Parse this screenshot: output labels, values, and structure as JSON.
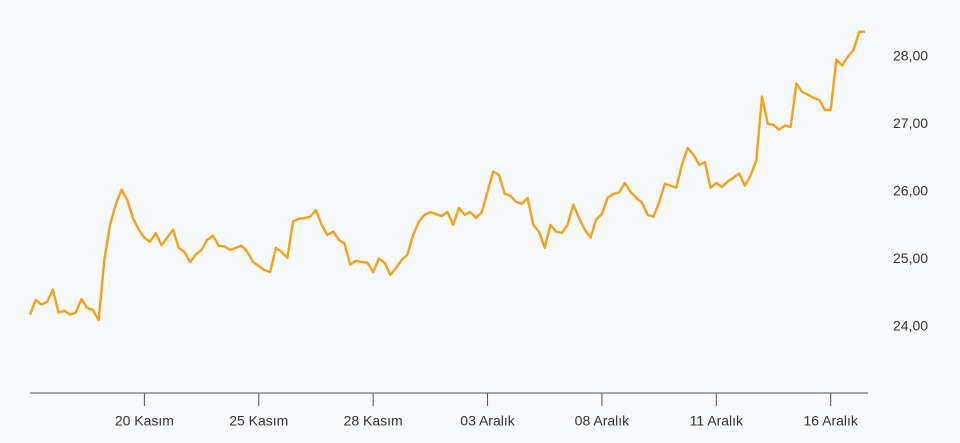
{
  "chart_data": {
    "type": "line",
    "color": "#f4a21d",
    "grid": false,
    "categories": [
      null,
      null,
      null,
      null,
      null,
      null,
      null,
      null,
      null,
      null,
      null,
      null,
      null,
      null,
      null,
      null,
      null,
      null,
      null,
      null,
      "20 Kasım",
      null,
      null,
      null,
      null,
      null,
      null,
      null,
      null,
      null,
      null,
      null,
      null,
      null,
      null,
      null,
      null,
      null,
      null,
      null,
      "25 Kasım",
      null,
      null,
      null,
      null,
      null,
      null,
      null,
      null,
      null,
      null,
      null,
      null,
      null,
      null,
      null,
      null,
      null,
      null,
      null,
      "28 Kasım",
      null,
      null,
      null,
      null,
      null,
      null,
      null,
      null,
      null,
      null,
      null,
      null,
      null,
      null,
      null,
      null,
      null,
      null,
      null,
      "03 Aralık",
      null,
      null,
      null,
      null,
      null,
      null,
      null,
      null,
      null,
      null,
      null,
      null,
      null,
      null,
      null,
      null,
      null,
      null,
      null,
      "08 Aralık",
      null,
      null,
      null,
      null,
      null,
      null,
      null,
      null,
      null,
      null,
      null,
      null,
      null,
      null,
      null,
      null,
      null,
      null,
      null,
      "11 Aralık",
      null,
      null,
      null,
      null,
      null,
      null,
      null,
      null,
      null,
      null,
      null,
      null,
      null,
      null,
      null,
      null,
      null,
      null,
      null,
      "16 Aralık",
      null,
      null,
      null,
      null,
      null,
      null
    ],
    "values": [
      24.18,
      24.4,
      24.33,
      24.37,
      24.55,
      24.21,
      24.24,
      24.18,
      24.21,
      24.41,
      24.28,
      24.25,
      24.1,
      24.99,
      25.51,
      25.81,
      26.03,
      25.88,
      25.61,
      25.44,
      25.32,
      25.26,
      25.39,
      25.21,
      25.32,
      25.44,
      25.17,
      25.11,
      24.96,
      25.07,
      25.14,
      25.29,
      25.35,
      25.2,
      25.19,
      25.14,
      25.17,
      25.2,
      25.11,
      24.96,
      24.9,
      24.84,
      24.81,
      25.17,
      25.11,
      25.02,
      25.56,
      25.6,
      25.61,
      25.63,
      25.73,
      25.51,
      25.36,
      25.41,
      25.29,
      25.23,
      24.92,
      24.98,
      24.96,
      24.95,
      24.81,
      25.01,
      24.95,
      24.77,
      24.87,
      24.99,
      25.07,
      25.36,
      25.56,
      25.66,
      25.7,
      25.67,
      25.64,
      25.7,
      25.51,
      25.76,
      25.66,
      25.7,
      25.61,
      25.7,
      26.0,
      26.3,
      26.25,
      25.97,
      25.94,
      25.85,
      25.82,
      25.91,
      25.51,
      25.41,
      25.17,
      25.51,
      25.41,
      25.39,
      25.51,
      25.81,
      25.61,
      25.44,
      25.32,
      25.59,
      25.67,
      25.91,
      25.97,
      25.99,
      26.13,
      26.0,
      25.91,
      25.84,
      25.66,
      25.63,
      25.84,
      26.12,
      26.09,
      26.06,
      26.4,
      26.65,
      26.55,
      26.4,
      26.44,
      26.06,
      26.13,
      26.07,
      26.15,
      26.21,
      26.27,
      26.09,
      26.24,
      26.47,
      27.41,
      27.01,
      26.99,
      26.92,
      26.98,
      26.96,
      27.6,
      27.48,
      27.44,
      27.39,
      27.36,
      27.21,
      27.21,
      27.96,
      27.87,
      28.0,
      28.1,
      28.37,
      28.37
    ],
    "ylim": [
      23.02,
      28.84
    ],
    "yticks": [
      {
        "value": 24,
        "label": "24,00"
      },
      {
        "value": 25,
        "label": "25,00"
      },
      {
        "value": 26,
        "label": "26,00"
      },
      {
        "value": 27,
        "label": "27,00"
      },
      {
        "value": 28,
        "label": "28,00"
      }
    ]
  }
}
